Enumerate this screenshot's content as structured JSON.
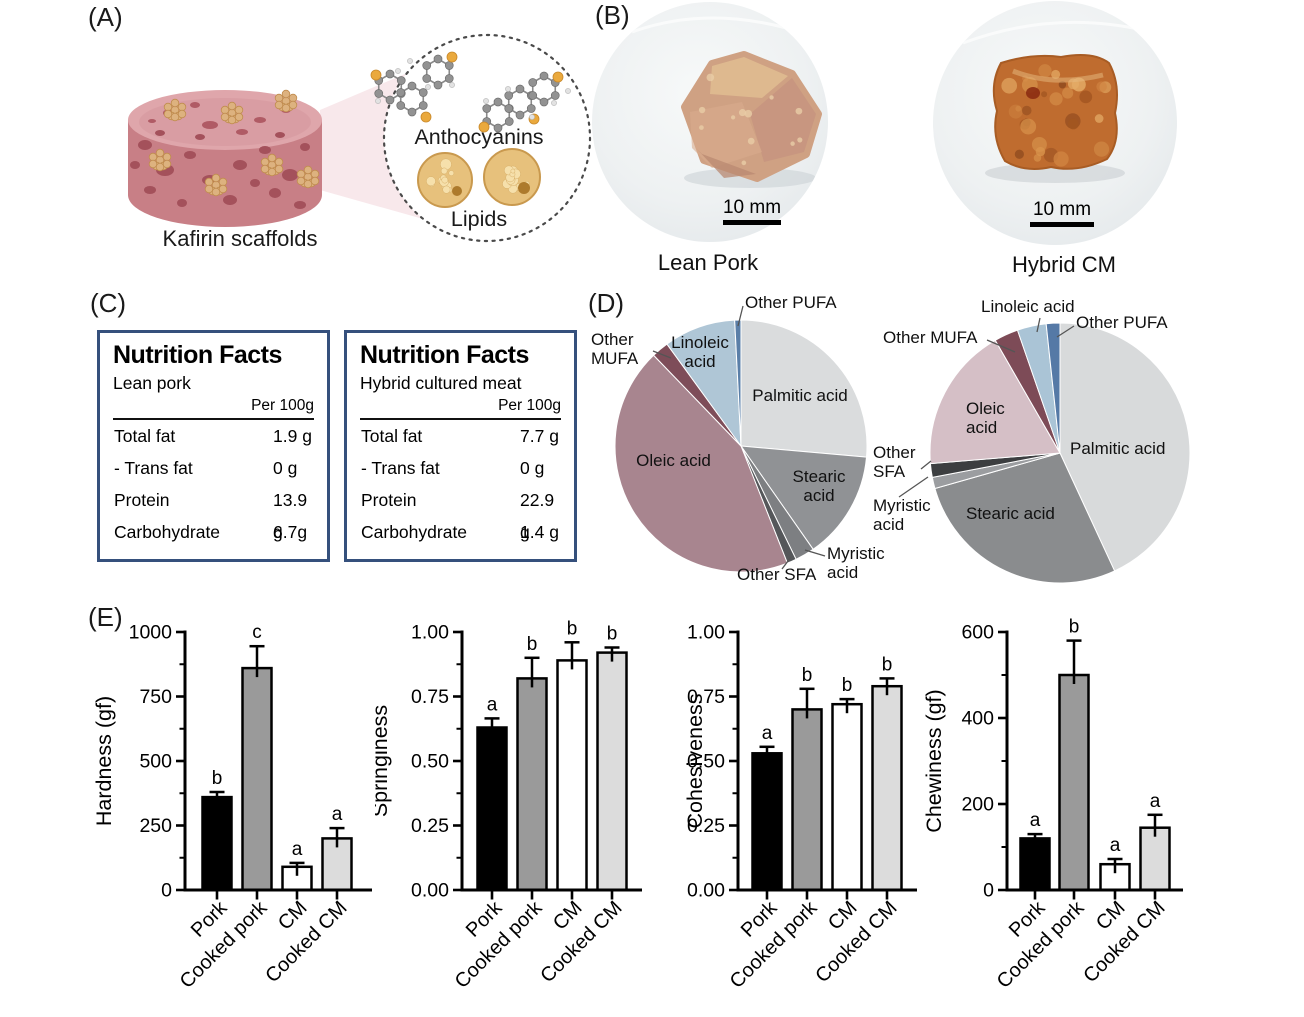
{
  "panel_labels": {
    "a": "(A)",
    "b": "(B)",
    "c": "(C)",
    "d": "(D)",
    "e": "(E)"
  },
  "panel_a": {
    "caption": "Kafirin scaffolds",
    "anthocyanins_label": "Anthocyanins",
    "lipids_label": "Lipids"
  },
  "panel_b": {
    "photos": [
      {
        "caption": "Lean Pork",
        "scale_label": "10 mm"
      },
      {
        "caption": "Hybrid CM",
        "scale_label": "10 mm"
      }
    ]
  },
  "panel_c": {
    "tables": [
      {
        "title": "Nutrition Facts",
        "subtitle": "Lean pork",
        "unit_header": "Per 100g",
        "rows": [
          {
            "name": "Total fat",
            "value": "1.9 g"
          },
          {
            "name": "- Trans fat",
            "value": "0 g"
          },
          {
            "name": "Protein",
            "value": "13.9 g"
          },
          {
            "name": "Carbohydrate",
            "value": "6.7g"
          }
        ]
      },
      {
        "title": "Nutrition Facts",
        "subtitle": "Hybrid cultured meat",
        "unit_header": "Per 100g",
        "rows": [
          {
            "name": "Total fat",
            "value": "7.7 g"
          },
          {
            "name": "- Trans fat",
            "value": "0 g"
          },
          {
            "name": "Protein",
            "value": "22.9 g"
          },
          {
            "name": "Carbohydrate",
            "value": "1.4 g"
          }
        ]
      }
    ]
  },
  "chart_data": [
    {
      "type": "pie",
      "id": "left-pie",
      "slices": [
        {
          "label": "Palmitic acid",
          "value": 26.4,
          "color": "#dadcdd"
        },
        {
          "label": "Stearic acid",
          "value": 13.9,
          "color": "#909295"
        },
        {
          "label": "Myristic acid",
          "value": 2.5,
          "color": "#7d7f82"
        },
        {
          "label": "Other SFA",
          "value": 1.2,
          "color": "#55575a"
        },
        {
          "label": "Oleic acid",
          "value": 43.8,
          "color": "#a8858f"
        },
        {
          "label": "Other MUFA",
          "value": 2.2,
          "color": "#7e4d59"
        },
        {
          "label": "Linoleic acid",
          "value": 9.2,
          "color": "#afc6d6"
        },
        {
          "label": "Other PUFA",
          "value": 0.8,
          "color": "#5a7fa8"
        }
      ]
    },
    {
      "type": "pie",
      "id": "right-pie",
      "slices": [
        {
          "label": "Palmitic acid",
          "value": 43.1,
          "color": "#d8dadb"
        },
        {
          "label": "Stearic acid",
          "value": 27.5,
          "color": "#8a8c8e"
        },
        {
          "label": "Myristic acid",
          "value": 1.4,
          "color": "#9b9da0"
        },
        {
          "label": "Other SFA",
          "value": 1.7,
          "color": "#3c3e40"
        },
        {
          "label": "Oleic acid",
          "value": 18.0,
          "color": "#d5bfc6"
        },
        {
          "label": "Other MUFA",
          "value": 3.0,
          "color": "#7d4b57"
        },
        {
          "label": "Linoleic acid",
          "value": 3.6,
          "color": "#aac4d6"
        },
        {
          "label": "Other PUFA",
          "value": 1.7,
          "color": "#5579a6"
        }
      ]
    },
    {
      "type": "bar",
      "id": "hardness",
      "ylabel": "Hardness (gf)",
      "ylim": [
        0,
        1000
      ],
      "ytick_labels": [
        "0",
        "250",
        "500",
        "750",
        "1000"
      ],
      "categories": [
        "Pork",
        "Cooked pork",
        "CM",
        "Cooked CM"
      ],
      "values": [
        360,
        860,
        90,
        200
      ],
      "errors": [
        20,
        85,
        15,
        40
      ],
      "sig_letters": [
        "b",
        "c",
        "a",
        "a"
      ],
      "bar_colors": [
        "#000000",
        "#9a9a9a",
        "#ffffff",
        "#dcdcdc"
      ]
    },
    {
      "type": "bar",
      "id": "springiness",
      "ylabel": "Springiness",
      "ylim": [
        0,
        1.0
      ],
      "ytick_labels": [
        "0.00",
        "0.25",
        "0.50",
        "0.75",
        "1.00"
      ],
      "categories": [
        "Pork",
        "Cooked pork",
        "CM",
        "Cooked CM"
      ],
      "values": [
        0.63,
        0.82,
        0.89,
        0.92
      ],
      "errors": [
        0.035,
        0.08,
        0.07,
        0.02
      ],
      "sig_letters": [
        "a",
        "b",
        "b",
        "b"
      ],
      "bar_colors": [
        "#000000",
        "#9a9a9a",
        "#ffffff",
        "#dcdcdc"
      ]
    },
    {
      "type": "bar",
      "id": "cohesiveness",
      "ylabel": "Cohesiveness",
      "ylim": [
        0,
        1.0
      ],
      "ytick_labels": [
        "0.00",
        "0.25",
        "0.50",
        "0.75",
        "1.00"
      ],
      "categories": [
        "Pork",
        "Cooked pork",
        "CM",
        "Cooked CM"
      ],
      "values": [
        0.53,
        0.7,
        0.72,
        0.79
      ],
      "errors": [
        0.025,
        0.08,
        0.02,
        0.03
      ],
      "sig_letters": [
        "a",
        "b",
        "b",
        "b"
      ],
      "bar_colors": [
        "#000000",
        "#9a9a9a",
        "#ffffff",
        "#dcdcdc"
      ]
    },
    {
      "type": "bar",
      "id": "chewiness",
      "ylabel": "Chewiness (gf)",
      "ylim": [
        0,
        600
      ],
      "ytick_labels": [
        "0",
        "200",
        "400",
        "600"
      ],
      "categories": [
        "Pork",
        "Cooked pork",
        "CM",
        "Cooked CM"
      ],
      "values": [
        120,
        500,
        60,
        145
      ],
      "errors": [
        10,
        80,
        12,
        30
      ],
      "sig_letters": [
        "a",
        "b",
        "a",
        "a"
      ],
      "bar_colors": [
        "#000000",
        "#9a9a9a",
        "#ffffff",
        "#dcdcdc"
      ]
    }
  ]
}
